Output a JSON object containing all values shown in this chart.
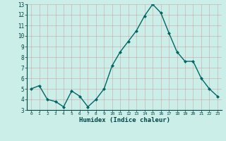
{
  "x": [
    0,
    1,
    2,
    3,
    4,
    5,
    6,
    7,
    8,
    9,
    10,
    11,
    12,
    13,
    14,
    15,
    16,
    17,
    18,
    19,
    20,
    21,
    22,
    23
  ],
  "y": [
    5.0,
    5.3,
    4.0,
    3.8,
    3.3,
    4.8,
    4.3,
    3.3,
    4.0,
    5.0,
    7.2,
    8.5,
    9.5,
    10.5,
    11.9,
    13.0,
    12.2,
    10.3,
    8.5,
    7.6,
    7.6,
    6.0,
    5.0,
    4.3
  ],
  "xlabel": "Humidex (Indice chaleur)",
  "ylim": [
    3,
    13
  ],
  "xlim_min": -0.5,
  "xlim_max": 23.5,
  "yticks": [
    3,
    4,
    5,
    6,
    7,
    8,
    9,
    10,
    11,
    12,
    13
  ],
  "xtick_labels": [
    "0",
    "1",
    "2",
    "3",
    "4",
    "5",
    "6",
    "7",
    "8",
    "9",
    "10",
    "11",
    "12",
    "13",
    "14",
    "15",
    "16",
    "17",
    "18",
    "19",
    "20",
    "21",
    "22",
    "23"
  ],
  "line_color": "#006666",
  "marker_color": "#006666",
  "bg_color": "#cceee8",
  "grid_color": "#aaddcc",
  "xlabel_color": "#004444",
  "tick_color": "#004444"
}
